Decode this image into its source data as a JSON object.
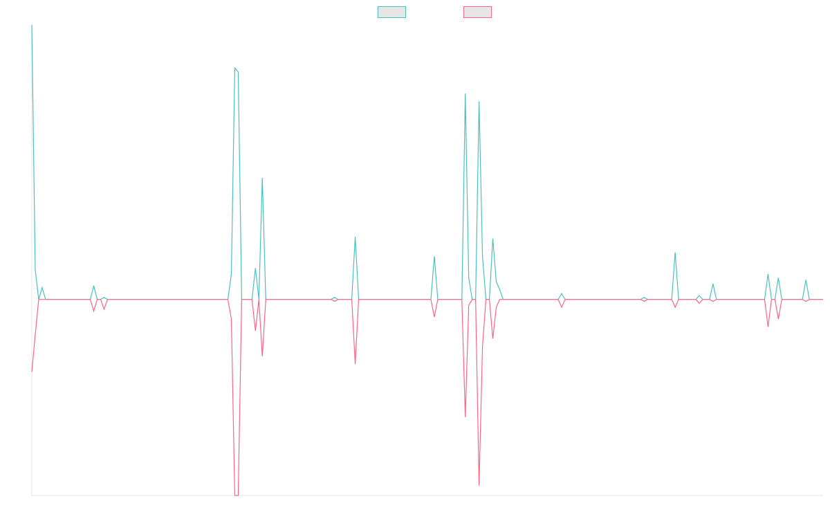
{
  "chart_data": {
    "type": "line",
    "legend": "top",
    "ylim": [
      -100,
      140
    ],
    "categories": [
      null,
      null,
      null,
      null,
      null,
      null,
      null,
      null,
      null,
      null,
      null,
      null,
      null,
      null,
      null,
      null,
      null,
      null,
      null,
      null,
      null,
      null,
      null,
      null,
      null,
      null,
      null,
      null,
      null,
      null,
      null,
      null,
      null,
      null,
      null,
      null,
      null,
      null,
      null,
      null,
      null,
      null,
      null,
      null,
      null,
      null,
      null,
      null,
      null,
      null,
      null,
      null,
      null,
      null,
      null,
      null,
      null,
      null,
      null,
      null,
      null,
      null,
      null,
      null,
      null,
      null,
      null,
      null,
      null,
      null,
      null,
      null,
      null,
      null,
      null,
      null,
      null,
      null,
      null,
      null,
      null,
      null,
      null,
      null,
      null,
      null,
      null,
      null,
      null,
      null,
      null,
      null,
      null,
      null,
      null,
      null,
      null,
      null,
      null,
      null,
      null,
      null,
      null,
      null,
      null,
      null,
      null,
      null,
      null,
      null,
      null,
      null,
      null,
      null,
      null,
      null,
      null,
      null,
      null,
      null,
      null,
      null,
      null,
      null,
      null,
      null,
      null,
      null,
      null,
      null,
      null,
      null,
      null,
      null,
      null,
      null,
      null,
      null,
      null,
      null,
      null,
      null,
      null,
      null,
      null,
      null,
      null,
      null,
      null,
      null,
      null,
      null,
      null,
      null,
      null,
      null,
      null,
      null,
      null,
      null,
      null,
      null,
      null,
      null,
      null,
      null,
      null,
      null,
      null,
      null,
      null,
      null,
      null,
      null,
      null,
      null,
      null,
      null,
      null,
      null,
      null,
      null,
      null,
      null,
      null,
      null,
      null,
      null,
      null,
      null,
      null,
      null,
      null,
      null,
      null,
      null,
      null,
      null,
      null,
      null,
      null,
      null,
      null,
      null,
      null,
      null,
      null,
      null,
      null,
      null,
      null,
      null,
      null,
      null,
      null,
      null,
      null,
      null,
      null,
      null,
      null,
      null,
      null,
      null,
      null,
      null,
      null,
      null,
      null,
      null,
      null
    ],
    "series": [
      {
        "color": "#4bc0c0",
        "values": [
          140,
          15,
          0,
          6,
          0,
          0,
          0,
          0,
          0,
          0,
          0,
          0,
          0,
          0,
          0,
          0,
          0,
          0,
          7,
          0,
          0,
          1,
          0,
          0,
          0,
          0,
          0,
          0,
          0,
          0,
          0,
          0,
          0,
          0,
          0,
          0,
          0,
          0,
          0,
          0,
          0,
          0,
          0,
          0,
          0,
          0,
          0,
          0,
          0,
          0,
          0,
          0,
          0,
          0,
          0,
          0,
          0,
          0,
          13,
          118,
          116,
          0,
          0,
          0,
          0,
          16,
          0,
          62,
          0,
          0,
          0,
          0,
          0,
          0,
          0,
          0,
          0,
          0,
          0,
          0,
          0,
          0,
          0,
          0,
          0,
          0,
          0,
          0,
          1,
          0,
          0,
          0,
          0,
          0,
          32,
          0,
          0,
          0,
          0,
          0,
          0,
          0,
          0,
          0,
          0,
          0,
          0,
          0,
          0,
          0,
          0,
          0,
          0,
          0,
          0,
          0,
          0,
          22,
          0,
          0,
          0,
          0,
          0,
          0,
          0,
          0,
          105,
          11,
          0,
          0,
          101,
          22,
          0,
          0,
          31,
          9,
          5,
          0,
          0,
          0,
          0,
          0,
          0,
          0,
          0,
          0,
          0,
          0,
          0,
          0,
          0,
          0,
          0,
          0,
          3,
          0,
          0,
          0,
          0,
          0,
          0,
          0,
          0,
          0,
          0,
          0,
          0,
          0,
          0,
          0,
          0,
          0,
          0,
          0,
          0,
          0,
          0,
          0,
          1,
          0,
          0,
          0,
          0,
          0,
          0,
          0,
          0,
          24,
          0,
          0,
          0,
          0,
          0,
          0,
          2,
          0,
          0,
          0,
          8,
          0,
          0,
          0,
          0,
          0,
          0,
          0,
          0,
          0,
          0,
          0,
          0,
          0,
          0,
          0,
          13,
          0,
          0,
          11,
          0,
          0,
          0,
          0,
          0,
          0,
          0,
          10,
          0,
          0,
          0,
          0,
          0
        ]
      },
      {
        "color": "#ff6384",
        "values": [
          -37,
          -18,
          0,
          0,
          0,
          0,
          0,
          0,
          0,
          0,
          0,
          0,
          0,
          0,
          0,
          0,
          0,
          0,
          -6,
          0,
          0,
          -5,
          0,
          0,
          0,
          0,
          0,
          0,
          0,
          0,
          0,
          0,
          0,
          0,
          0,
          0,
          0,
          0,
          0,
          0,
          0,
          0,
          0,
          0,
          0,
          0,
          0,
          0,
          0,
          0,
          0,
          0,
          0,
          0,
          0,
          0,
          0,
          0,
          -10,
          -100,
          -100,
          0,
          0,
          0,
          0,
          -16,
          0,
          -29,
          0,
          0,
          0,
          0,
          0,
          0,
          0,
          0,
          0,
          0,
          0,
          0,
          0,
          0,
          0,
          0,
          0,
          0,
          0,
          0,
          -1,
          0,
          0,
          0,
          0,
          0,
          -33,
          0,
          0,
          0,
          0,
          0,
          0,
          0,
          0,
          0,
          0,
          0,
          0,
          0,
          0,
          0,
          0,
          0,
          0,
          0,
          0,
          0,
          0,
          -9,
          0,
          0,
          0,
          0,
          0,
          0,
          0,
          0,
          -60,
          -3,
          0,
          0,
          -95,
          -24,
          0,
          0,
          -20,
          -4,
          0,
          0,
          0,
          0,
          0,
          0,
          0,
          0,
          0,
          0,
          0,
          0,
          0,
          0,
          0,
          0,
          0,
          0,
          -4,
          0,
          0,
          0,
          0,
          0,
          0,
          0,
          0,
          0,
          0,
          0,
          0,
          0,
          0,
          0,
          0,
          0,
          0,
          0,
          0,
          0,
          0,
          0,
          -1,
          0,
          0,
          0,
          0,
          0,
          0,
          0,
          0,
          -4,
          0,
          0,
          0,
          0,
          0,
          0,
          -2,
          0,
          0,
          0,
          -1,
          0,
          0,
          0,
          0,
          0,
          0,
          0,
          0,
          0,
          0,
          0,
          0,
          0,
          0,
          0,
          -14,
          0,
          0,
          -10,
          0,
          0,
          0,
          0,
          0,
          0,
          0,
          -1,
          0,
          0,
          0,
          0,
          0
        ]
      }
    ]
  }
}
